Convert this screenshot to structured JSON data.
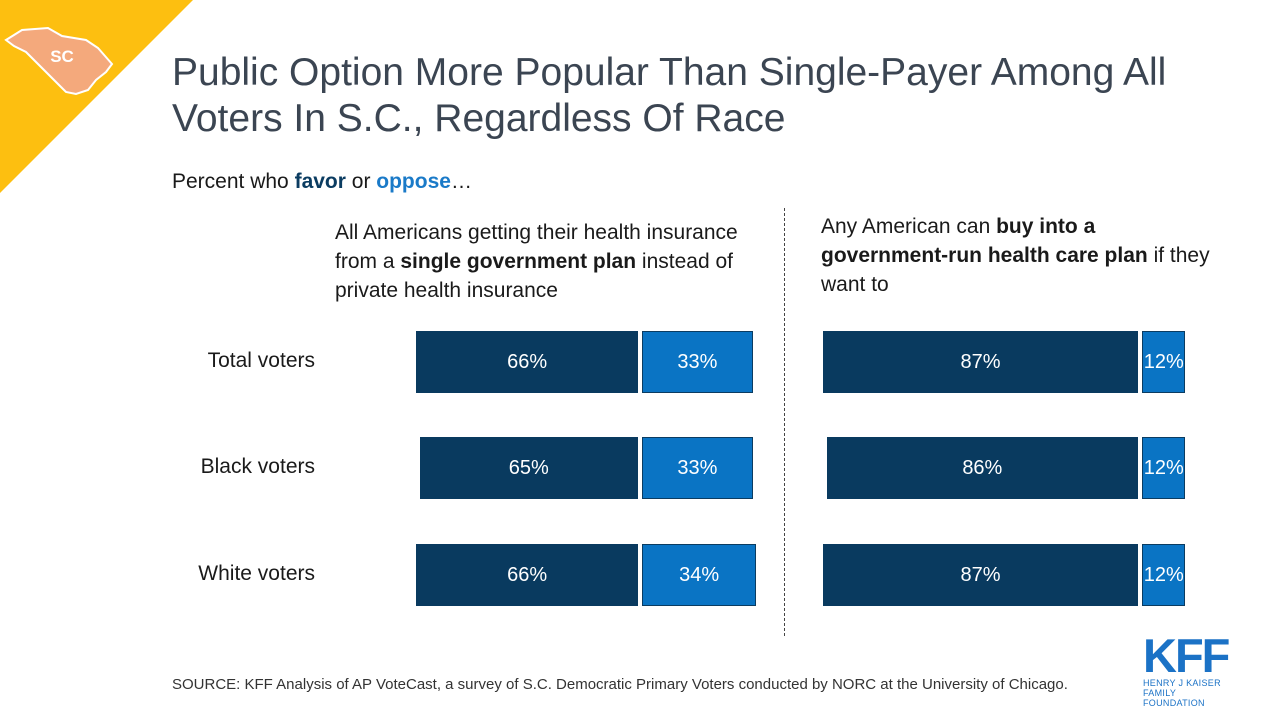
{
  "badge": {
    "state_abbr": "SC"
  },
  "title": "Public Option More Popular Than Single-Payer Among All Voters In S.C., Regardless Of Race",
  "subtitle": {
    "prefix": "Percent who ",
    "favor": "favor",
    "middle": " or ",
    "oppose": "oppose",
    "suffix": "…"
  },
  "colors": {
    "favor": "#093a5f",
    "oppose": "#0a74c4",
    "corner": "#fdbf10",
    "badge_map": "#f4a97c"
  },
  "chart_data": [
    {
      "type": "bar",
      "orientation": "horizontal",
      "stacked": true,
      "question": {
        "part1": "All Americans getting their health insurance from a ",
        "bold": "single government plan",
        "part2": " instead of private health insurance"
      },
      "categories": [
        "Total voters",
        "Black voters",
        "White voters"
      ],
      "series": [
        {
          "name": "favor",
          "values": [
            66,
            65,
            66
          ],
          "labels": [
            "66%",
            "65%",
            "66%"
          ]
        },
        {
          "name": "oppose",
          "values": [
            33,
            33,
            34
          ],
          "labels": [
            "33%",
            "33%",
            "34%"
          ]
        }
      ],
      "xlim": [
        0,
        100
      ]
    },
    {
      "type": "bar",
      "orientation": "horizontal",
      "stacked": true,
      "question": {
        "part1": "Any American can ",
        "bold": "buy into a government-run health care plan",
        "part2": " if they want to"
      },
      "categories": [
        "Total voters",
        "Black voters",
        "White voters"
      ],
      "series": [
        {
          "name": "favor",
          "values": [
            87,
            86,
            87
          ],
          "labels": [
            "87%",
            "86%",
            "87%"
          ]
        },
        {
          "name": "oppose",
          "values": [
            12,
            12,
            12
          ],
          "labels": [
            "12%",
            "12%",
            "12%"
          ]
        }
      ],
      "xlim": [
        0,
        100
      ]
    }
  ],
  "source": "SOURCE: KFF Analysis of AP VoteCast, a survey of S.C. Democratic Primary Voters conducted by NORC at the University of Chicago.",
  "logo": {
    "mark": "KFF",
    "line1": "HENRY J KAISER",
    "line2": "FAMILY FOUNDATION"
  }
}
